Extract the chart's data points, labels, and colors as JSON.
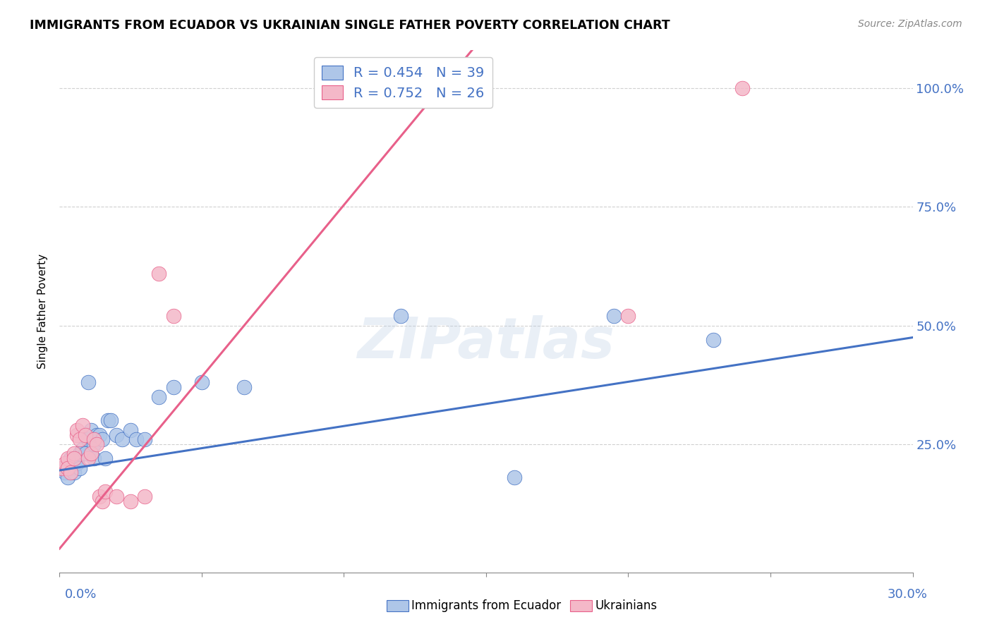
{
  "title": "IMMIGRANTS FROM ECUADOR VS UKRAINIAN SINGLE FATHER POVERTY CORRELATION CHART",
  "source": "Source: ZipAtlas.com",
  "ylabel": "Single Father Poverty",
  "legend_label1": "Immigrants from Ecuador",
  "legend_label2": "Ukrainians",
  "r1": 0.454,
  "n1": 39,
  "r2": 0.752,
  "n2": 26,
  "blue_scatter_color": "#aec6e8",
  "pink_scatter_color": "#f4b8c8",
  "blue_line_color": "#4472c4",
  "pink_line_color": "#e8608a",
  "text_blue": "#4472c4",
  "watermark": "ZIPatlas",
  "xlim": [
    0.0,
    0.3
  ],
  "ylim": [
    -0.02,
    1.08
  ],
  "blue_line_y0": 0.195,
  "blue_line_y1": 0.475,
  "pink_line_y0": 0.03,
  "pink_line_y1": 1.08,
  "pink_line_x1": 0.145,
  "ecuador_x": [
    0.001,
    0.002,
    0.002,
    0.003,
    0.003,
    0.004,
    0.004,
    0.005,
    0.005,
    0.006,
    0.006,
    0.007,
    0.007,
    0.008,
    0.009,
    0.01,
    0.01,
    0.011,
    0.012,
    0.012,
    0.013,
    0.014,
    0.015,
    0.016,
    0.017,
    0.018,
    0.02,
    0.022,
    0.025,
    0.027,
    0.03,
    0.035,
    0.04,
    0.05,
    0.065,
    0.12,
    0.16,
    0.195,
    0.23
  ],
  "ecuador_y": [
    0.2,
    0.2,
    0.19,
    0.21,
    0.18,
    0.22,
    0.2,
    0.21,
    0.19,
    0.22,
    0.21,
    0.23,
    0.2,
    0.24,
    0.23,
    0.38,
    0.26,
    0.28,
    0.25,
    0.22,
    0.27,
    0.27,
    0.26,
    0.22,
    0.3,
    0.3,
    0.27,
    0.26,
    0.28,
    0.26,
    0.26,
    0.35,
    0.37,
    0.38,
    0.37,
    0.52,
    0.18,
    0.52,
    0.47
  ],
  "ukraine_x": [
    0.001,
    0.002,
    0.003,
    0.003,
    0.004,
    0.005,
    0.005,
    0.006,
    0.006,
    0.007,
    0.008,
    0.009,
    0.01,
    0.011,
    0.012,
    0.013,
    0.014,
    0.015,
    0.016,
    0.02,
    0.025,
    0.03,
    0.035,
    0.04,
    0.2,
    0.24
  ],
  "ukraine_y": [
    0.2,
    0.21,
    0.22,
    0.2,
    0.19,
    0.23,
    0.22,
    0.27,
    0.28,
    0.26,
    0.29,
    0.27,
    0.22,
    0.23,
    0.26,
    0.25,
    0.14,
    0.13,
    0.15,
    0.14,
    0.13,
    0.14,
    0.61,
    0.52,
    0.52,
    1.0
  ]
}
